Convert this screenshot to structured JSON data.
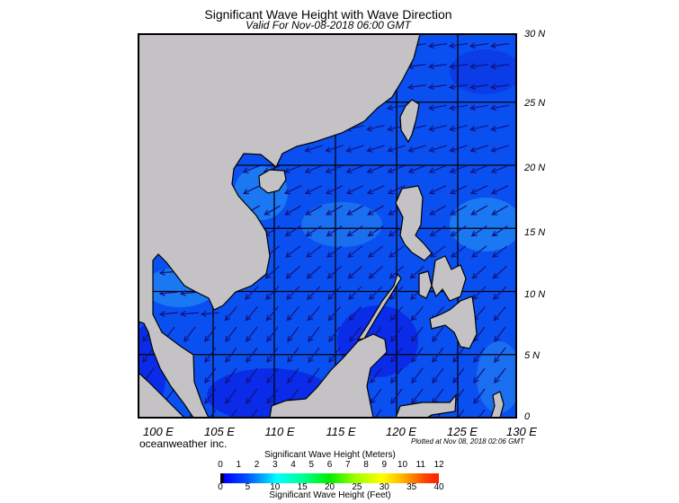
{
  "header": {
    "title": "Significant Wave Height with Wave Direction",
    "subtitle": "Valid For Nov-08-2018 06:00 GMT"
  },
  "map": {
    "region": {
      "lon_min": 100,
      "lon_max": 130,
      "lat_min": 0,
      "lat_max": 30
    },
    "lat_labels": [
      "30 N",
      "25 N",
      "20 N",
      "15 N",
      "10 N",
      "5 N",
      "0"
    ],
    "lon_labels": [
      "100 E",
      "105 E",
      "110 E",
      "115 E",
      "120 E",
      "125 E",
      "130 E"
    ],
    "colors": {
      "ocean": "#0a50f0",
      "ocean_dark": "#0a2ce8",
      "ocean_light": "#1a78f2",
      "land": "#c4c2c4",
      "arrow": "#121280",
      "grid": "#000000"
    }
  },
  "footer": {
    "credit": "oceanweather inc.",
    "plotted": "Plotted at Nov 08, 2018 02:06 GMT"
  },
  "colorbar": {
    "title_top": "Significant Wave Height (Meters)",
    "title_bottom": "Significant Wave Height (Feet)",
    "meters": [
      "0",
      "1",
      "2",
      "3",
      "4",
      "5",
      "6",
      "7",
      "8",
      "9",
      "10",
      "11",
      "12"
    ],
    "feet": [
      "0",
      "5",
      "10",
      "15",
      "20",
      "25",
      "30",
      "35",
      "40"
    ]
  }
}
